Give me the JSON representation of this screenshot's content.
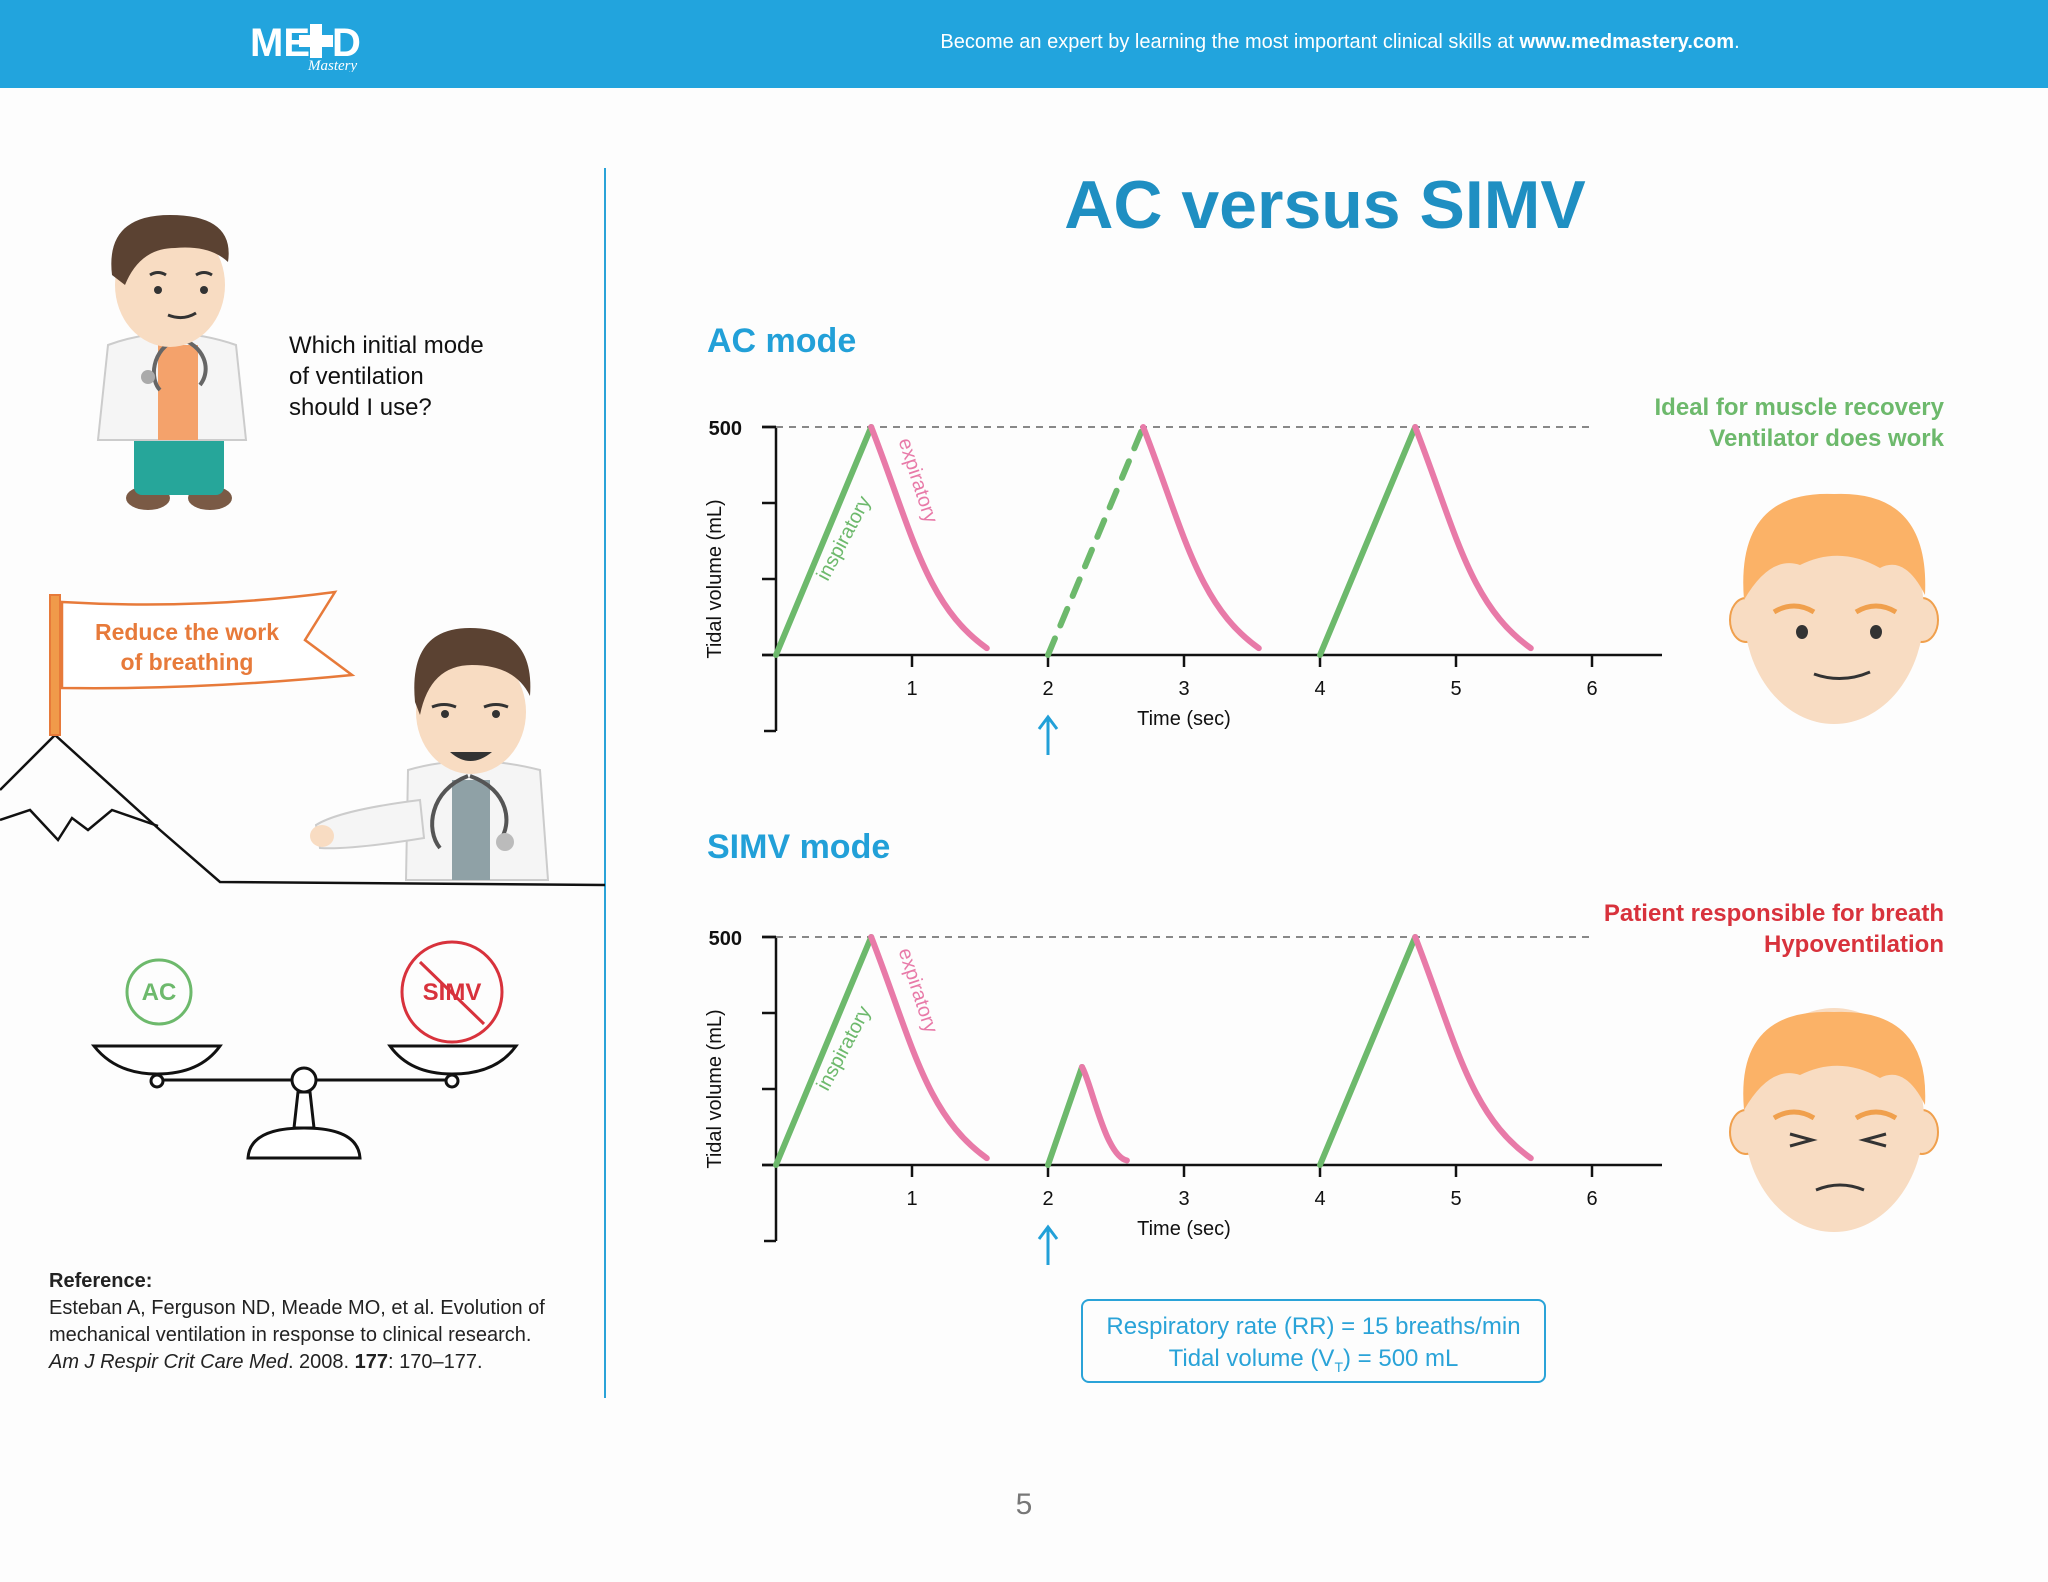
{
  "header": {
    "logo_text": "MED Mastery",
    "tagline_prefix": "Become an expert by learning the most important clinical skills at ",
    "tagline_link": "www.medmastery.com",
    "tagline_suffix": ".",
    "bg_color": "#22a4dd"
  },
  "title": "AC versus SIMV",
  "left_panel": {
    "question": [
      "Which initial mode",
      "of ventilation",
      "should I use?"
    ],
    "flag_text": [
      "Reduce the work",
      "of breathing"
    ],
    "scale_left": "AC",
    "scale_right": "SIMV",
    "reference": {
      "heading": "Reference:",
      "line1": "Esteban A, Ferguson ND, Meade MO, et al. Evolution of",
      "line2": "mechanical ventilation in response to clinical research.",
      "journal": "Am J Respir Crit Care Med",
      "year": ". 2008. ",
      "volume": "177",
      "pages": ": 170–177."
    }
  },
  "ac": {
    "heading": "AC mode",
    "notes": [
      "Ideal for muscle recovery",
      "Ventilator does work"
    ],
    "color": "#6db96c"
  },
  "simv": {
    "heading": "SIMV mode",
    "notes": [
      "Patient responsible for breath",
      "Hypoventilation"
    ],
    "color": "#d8323c"
  },
  "chart_data": [
    {
      "type": "line",
      "title": "AC mode",
      "xlabel": "Time (sec)",
      "ylabel": "Tidal volume (mL)",
      "x_ticks": [
        "1",
        "2",
        "3",
        "4",
        "5",
        "6"
      ],
      "y_tick_label": "500",
      "ylim": [
        0,
        500
      ],
      "series": [
        {
          "name": "inspiratory",
          "color": "#6db96c",
          "segments": [
            [
              [
                0,
                0
              ],
              [
                0.7,
                500
              ]
            ],
            [
              [
                2,
                0
              ],
              [
                2.7,
                500
              ]
            ],
            [
              [
                4,
                0
              ],
              [
                4.7,
                500
              ]
            ]
          ]
        },
        {
          "name": "expiratory",
          "color": "#e87aa8",
          "segments": [
            [
              [
                0.7,
                500
              ],
              [
                1.1,
                150
              ],
              [
                1.55,
                15
              ]
            ],
            [
              [
                2.7,
                500
              ],
              [
                3.1,
                150
              ],
              [
                3.55,
                15
              ]
            ],
            [
              [
                4.7,
                500
              ],
              [
                5.1,
                150
              ],
              [
                5.55,
                15
              ]
            ]
          ]
        }
      ],
      "triggered_breath_at": 2
    },
    {
      "type": "line",
      "title": "SIMV mode",
      "xlabel": "Time (sec)",
      "ylabel": "Tidal volume (mL)",
      "x_ticks": [
        "1",
        "2",
        "3",
        "4",
        "5",
        "6"
      ],
      "y_tick_label": "500",
      "ylim": [
        0,
        500
      ],
      "series": [
        {
          "name": "inspiratory",
          "color": "#6db96c",
          "segments": [
            [
              [
                0,
                0
              ],
              [
                0.7,
                500
              ]
            ],
            [
              [
                2,
                0
              ],
              [
                2.25,
                215
              ]
            ],
            [
              [
                4,
                0
              ],
              [
                4.7,
                500
              ]
            ]
          ]
        },
        {
          "name": "expiratory",
          "color": "#e87aa8",
          "segments": [
            [
              [
                0.7,
                500
              ],
              [
                1.1,
                150
              ],
              [
                1.55,
                15
              ]
            ],
            [
              [
                2.25,
                215
              ],
              [
                2.42,
                60
              ],
              [
                2.58,
                10
              ]
            ],
            [
              [
                4.7,
                500
              ],
              [
                5.1,
                150
              ],
              [
                5.55,
                15
              ]
            ]
          ]
        }
      ],
      "spontaneous_breath_at": 2
    }
  ],
  "parameters": {
    "rr": "Respiratory rate (RR) = 15 breaths/min",
    "vt_prefix": "Tidal volume (V",
    "vt_sub": "T",
    "vt_suffix": ") = 500 mL"
  },
  "page_number": "5"
}
